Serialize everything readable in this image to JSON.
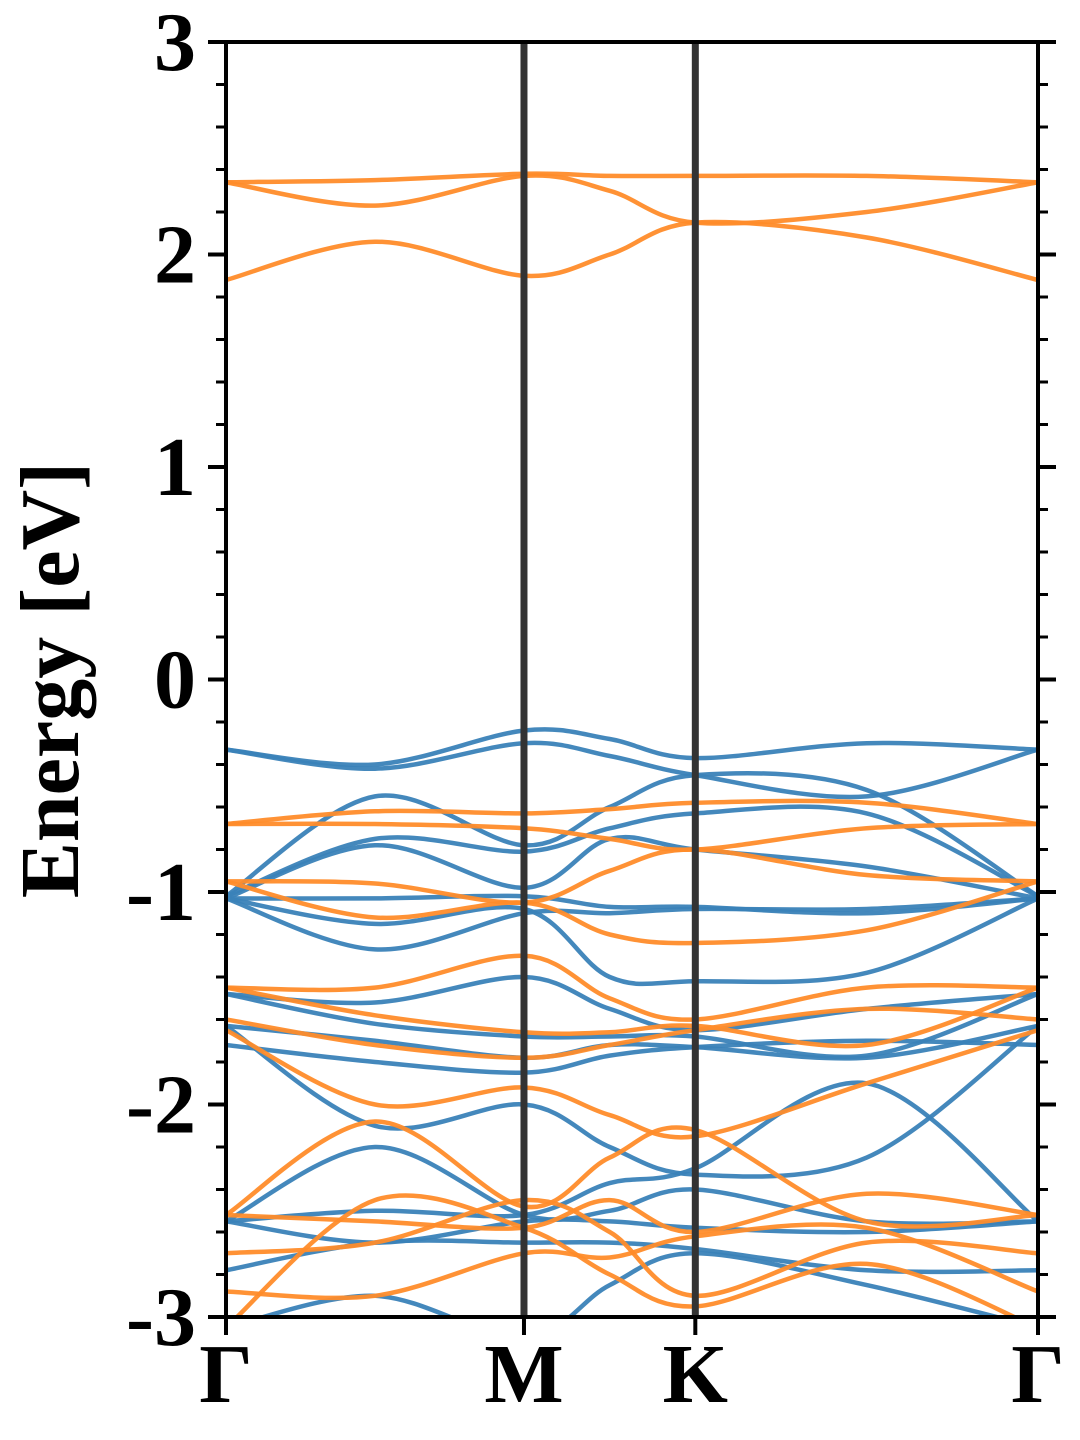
{
  "chart_data": {
    "type": "line",
    "title": "",
    "xlabel": "",
    "ylabel": "Energy [eV]",
    "ylim": [
      -3,
      3
    ],
    "yticks": [
      -3,
      -2,
      -1,
      0,
      1,
      2,
      3
    ],
    "ytick_labels": [
      "-3",
      "-2",
      "-1",
      "0",
      "1",
      "2",
      "3"
    ],
    "y_minor_step": 0.2,
    "x_path_points": [
      0,
      1,
      1.575,
      2.725
    ],
    "xtick_labels": [
      "Γ",
      "M",
      "K",
      "Γ"
    ],
    "vertical_lines_at": [
      1,
      1.575
    ],
    "grid": false,
    "legend": "none",
    "colors": {
      "blue": "#3a82b8",
      "orange": "#ff8c2a",
      "vline": "#333333"
    },
    "x": [
      0,
      0.5,
      1,
      1.2875,
      1.575,
      2.15,
      2.725
    ],
    "series": [
      {
        "color": "blue",
        "values": [
          -0.33,
          -0.4,
          -0.24,
          -0.28,
          -0.37,
          -0.3,
          -0.33
        ]
      },
      {
        "color": "blue",
        "values": [
          -0.33,
          -0.42,
          -0.3,
          -0.36,
          -0.45,
          -0.55,
          -0.33
        ]
      },
      {
        "color": "blue",
        "values": [
          -1.02,
          -0.55,
          -0.78,
          -0.6,
          -0.45,
          -0.52,
          -1.02
        ]
      },
      {
        "color": "blue",
        "values": [
          -1.02,
          -0.75,
          -0.81,
          -0.7,
          -0.63,
          -0.63,
          -1.02
        ]
      },
      {
        "color": "blue",
        "values": [
          -1.03,
          -1.03,
          -1.02,
          -1.07,
          -1.07,
          -1.1,
          -1.03
        ]
      },
      {
        "color": "blue",
        "values": [
          -1.03,
          -0.78,
          -0.98,
          -0.75,
          -0.8,
          -0.88,
          -1.03
        ]
      },
      {
        "color": "blue",
        "values": [
          -1.03,
          -1.15,
          -1.08,
          -1.4,
          -1.42,
          -1.38,
          -1.03
        ]
      },
      {
        "color": "blue",
        "values": [
          -1.03,
          -1.27,
          -1.1,
          -1.1,
          -1.08,
          -1.08,
          -1.03
        ]
      },
      {
        "color": "blue",
        "values": [
          -1.48,
          -1.52,
          -1.4,
          -1.55,
          -1.65,
          -1.55,
          -1.48
        ]
      },
      {
        "color": "blue",
        "values": [
          -1.48,
          -1.62,
          -1.68,
          -1.68,
          -1.68,
          -1.77,
          -1.48
        ]
      },
      {
        "color": "blue",
        "values": [
          -1.63,
          -1.7,
          -1.78,
          -1.72,
          -1.73,
          -1.78,
          -1.63
        ]
      },
      {
        "color": "blue",
        "values": [
          -1.72,
          -1.8,
          -1.85,
          -1.77,
          -1.73,
          -1.7,
          -1.72
        ]
      },
      {
        "color": "blue",
        "values": [
          -1.63,
          -2.1,
          -2.0,
          -2.2,
          -2.33,
          -2.25,
          -1.63
        ]
      },
      {
        "color": "blue",
        "values": [
          -2.55,
          -2.5,
          -2.52,
          -2.37,
          -2.3,
          -1.9,
          -2.55
        ]
      },
      {
        "color": "blue",
        "values": [
          -2.55,
          -2.2,
          -2.52,
          -2.5,
          -2.4,
          -2.55,
          -2.55
        ]
      },
      {
        "color": "blue",
        "values": [
          -2.55,
          -2.65,
          -2.55,
          -2.55,
          -2.58,
          -2.6,
          -2.55
        ]
      },
      {
        "color": "blue",
        "values": [
          -2.78,
          -2.65,
          -2.65,
          -2.65,
          -2.68,
          -2.78,
          -2.78
        ]
      },
      {
        "color": "blue",
        "values": [
          -3.05,
          -2.9,
          -3.1,
          -2.85,
          -2.7,
          -2.85,
          -3.05
        ]
      },
      {
        "color": "orange",
        "values": [
          2.34,
          2.23,
          2.37,
          2.3,
          2.15,
          2.2,
          2.34
        ]
      },
      {
        "color": "orange",
        "values": [
          2.34,
          2.35,
          2.38,
          2.37,
          2.37,
          2.37,
          2.34
        ]
      },
      {
        "color": "orange",
        "values": [
          1.88,
          2.06,
          1.9,
          2.0,
          2.15,
          2.08,
          1.88
        ]
      },
      {
        "color": "orange",
        "values": [
          -0.68,
          -0.62,
          -0.63,
          -0.61,
          -0.58,
          -0.58,
          -0.68
        ]
      },
      {
        "color": "orange",
        "values": [
          -0.68,
          -0.68,
          -0.7,
          -0.75,
          -0.8,
          -0.7,
          -0.68
        ]
      },
      {
        "color": "orange",
        "values": [
          -0.95,
          -0.96,
          -1.05,
          -0.9,
          -0.8,
          -0.92,
          -0.95
        ]
      },
      {
        "color": "orange",
        "values": [
          -0.95,
          -1.12,
          -1.05,
          -1.2,
          -1.24,
          -1.18,
          -0.95
        ]
      },
      {
        "color": "orange",
        "values": [
          -1.45,
          -1.45,
          -1.3,
          -1.5,
          -1.6,
          -1.45,
          -1.45
        ]
      },
      {
        "color": "orange",
        "values": [
          -1.45,
          -1.58,
          -1.66,
          -1.66,
          -1.63,
          -1.72,
          -1.45
        ]
      },
      {
        "color": "orange",
        "values": [
          -1.6,
          -1.72,
          -1.78,
          -1.72,
          -1.65,
          -1.55,
          -1.6
        ]
      },
      {
        "color": "orange",
        "values": [
          -1.65,
          -2.0,
          -1.92,
          -2.05,
          -2.15,
          -1.9,
          -1.65
        ]
      },
      {
        "color": "orange",
        "values": [
          -2.52,
          -2.08,
          -2.48,
          -2.25,
          -2.12,
          -2.55,
          -2.52
        ]
      },
      {
        "color": "orange",
        "values": [
          -2.52,
          -2.55,
          -2.58,
          -2.45,
          -2.6,
          -2.42,
          -2.52
        ]
      },
      {
        "color": "orange",
        "values": [
          -2.7,
          -2.65,
          -2.45,
          -2.6,
          -2.9,
          -2.65,
          -2.7
        ]
      },
      {
        "color": "orange",
        "values": [
          -2.88,
          -2.9,
          -2.7,
          -2.72,
          -2.62,
          -2.58,
          -2.88
        ]
      },
      {
        "color": "orange",
        "values": [
          -3.05,
          -2.45,
          -2.58,
          -2.8,
          -2.95,
          -2.75,
          -3.05
        ]
      }
    ]
  }
}
